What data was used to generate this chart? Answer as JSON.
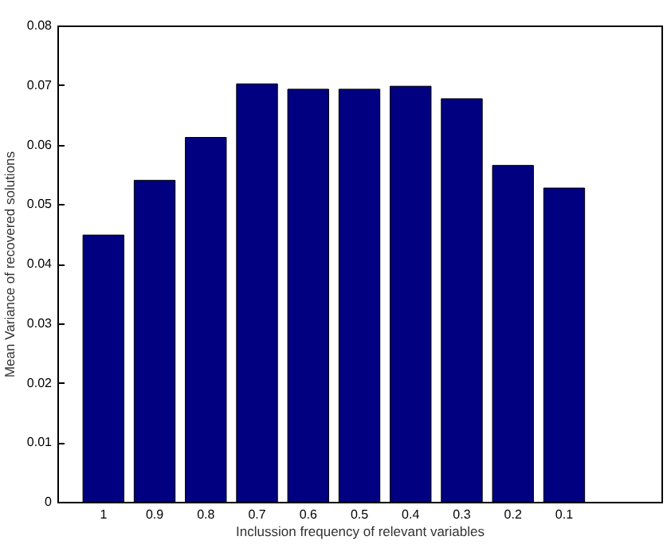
{
  "chart_data": {
    "type": "bar",
    "xlabel": "Inclussion frequency of relevant variables",
    "ylabel": "Mean Variance of recovered solutions",
    "categories": [
      "1",
      "0.9",
      "0.8",
      "0.7",
      "0.6",
      "0.5",
      "0.4",
      "0.3",
      "0.2",
      "0.1"
    ],
    "values": [
      0.0448,
      0.054,
      0.0612,
      0.0702,
      0.0693,
      0.0693,
      0.0698,
      0.0677,
      0.0565,
      0.0527
    ],
    "color": "#000080",
    "ylim": [
      0,
      0.08
    ],
    "yticks": [
      0,
      0.01,
      0.02,
      0.03,
      0.04,
      0.05,
      0.06,
      0.07,
      0.08
    ],
    "grid": false
  }
}
